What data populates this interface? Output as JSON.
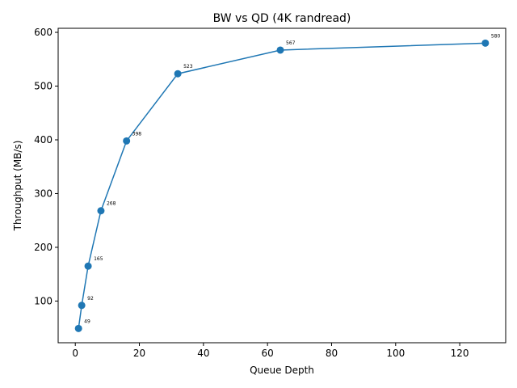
{
  "chart_data": {
    "type": "line",
    "title": "BW vs QD (4K randread)",
    "xlabel": "Queue Depth",
    "ylabel": "Throughput (MB/s)",
    "xlim": [
      -5.35,
      134.35
    ],
    "ylim": [
      22.45,
      607.55
    ],
    "xticks": [
      0,
      20,
      40,
      60,
      80,
      100,
      120
    ],
    "yticks": [
      100,
      200,
      300,
      400,
      500,
      600
    ],
    "grid": false,
    "series": [
      {
        "color": "#1f77b4",
        "marker": "circle",
        "x": [
          1,
          2,
          4,
          8,
          16,
          32,
          64,
          128
        ],
        "values": [
          49,
          92,
          165,
          268,
          398,
          523,
          567,
          580
        ],
        "data_labels": [
          "49",
          "92",
          "165",
          "268",
          "398",
          "523",
          "567",
          "580"
        ]
      }
    ]
  }
}
